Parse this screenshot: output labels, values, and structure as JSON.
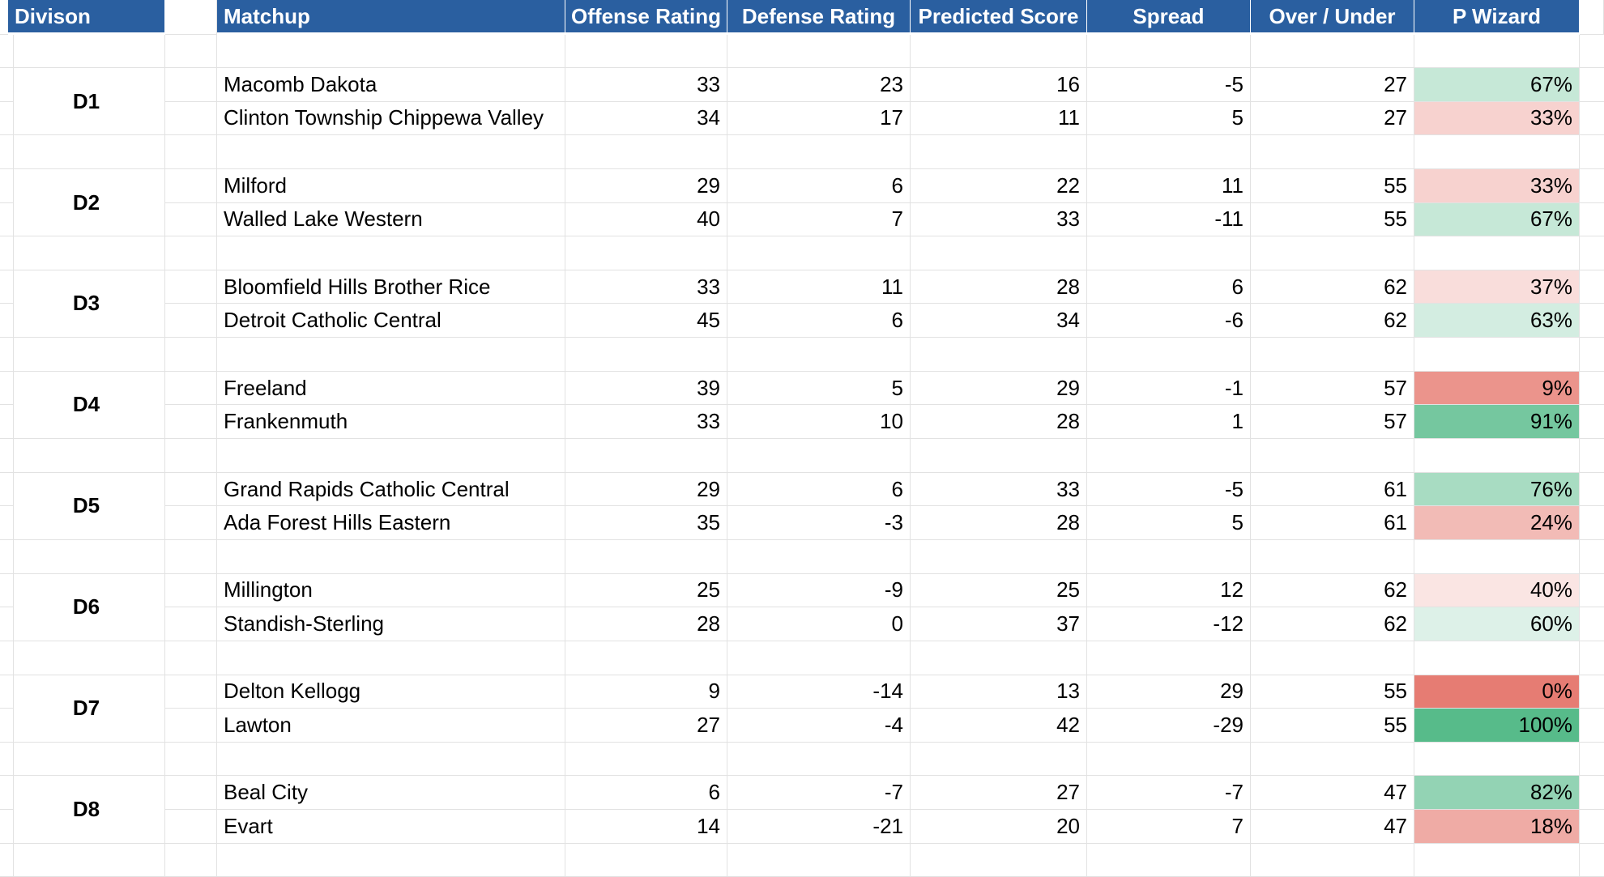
{
  "headers": {
    "division": "Divison",
    "matchup": "Matchup",
    "offense": "Offense Rating",
    "defense": "Defense Rating",
    "predicted": "Predicted Score",
    "spread": "Spread",
    "over_under": "Over / Under",
    "p_wizard": "P Wizard"
  },
  "divisions": [
    {
      "label": "D1",
      "teams": [
        {
          "name": "Macomb Dakota",
          "offense": "33",
          "defense": "23",
          "predicted": "16",
          "spread": "-5",
          "over_under": "27",
          "p_wizard": "67%",
          "p": 0.67
        },
        {
          "name": "Clinton Township Chippewa Valley",
          "offense": "34",
          "defense": "17",
          "predicted": "11",
          "spread": "5",
          "over_under": "27",
          "p_wizard": "33%",
          "p": 0.33
        }
      ]
    },
    {
      "label": "D2",
      "teams": [
        {
          "name": "Milford",
          "offense": "29",
          "defense": "6",
          "predicted": "22",
          "spread": "11",
          "over_under": "55",
          "p_wizard": "33%",
          "p": 0.33
        },
        {
          "name": "Walled Lake Western",
          "offense": "40",
          "defense": "7",
          "predicted": "33",
          "spread": "-11",
          "over_under": "55",
          "p_wizard": "67%",
          "p": 0.67
        }
      ]
    },
    {
      "label": "D3",
      "teams": [
        {
          "name": "Bloomfield Hills Brother Rice",
          "offense": "33",
          "defense": "11",
          "predicted": "28",
          "spread": "6",
          "over_under": "62",
          "p_wizard": "37%",
          "p": 0.37
        },
        {
          "name": "Detroit Catholic Central",
          "offense": "45",
          "defense": "6",
          "predicted": "34",
          "spread": "-6",
          "over_under": "62",
          "p_wizard": "63%",
          "p": 0.63
        }
      ]
    },
    {
      "label": "D4",
      "teams": [
        {
          "name": "Freeland",
          "offense": "39",
          "defense": "5",
          "predicted": "29",
          "spread": "-1",
          "over_under": "57",
          "p_wizard": "9%",
          "p": 0.09
        },
        {
          "name": "Frankenmuth",
          "offense": "33",
          "defense": "10",
          "predicted": "28",
          "spread": "1",
          "over_under": "57",
          "p_wizard": "91%",
          "p": 0.91
        }
      ]
    },
    {
      "label": "D5",
      "teams": [
        {
          "name": "Grand Rapids Catholic Central",
          "offense": "29",
          "defense": "6",
          "predicted": "33",
          "spread": "-5",
          "over_under": "61",
          "p_wizard": "76%",
          "p": 0.76
        },
        {
          "name": "Ada Forest Hills Eastern",
          "offense": "35",
          "defense": "-3",
          "predicted": "28",
          "spread": "5",
          "over_under": "61",
          "p_wizard": "24%",
          "p": 0.24
        }
      ]
    },
    {
      "label": "D6",
      "teams": [
        {
          "name": "Millington",
          "offense": "25",
          "defense": "-9",
          "predicted": "25",
          "spread": "12",
          "over_under": "62",
          "p_wizard": "40%",
          "p": 0.4
        },
        {
          "name": "Standish-Sterling",
          "offense": "28",
          "defense": "0",
          "predicted": "37",
          "spread": "-12",
          "over_under": "62",
          "p_wizard": "60%",
          "p": 0.6
        }
      ]
    },
    {
      "label": "D7",
      "teams": [
        {
          "name": "Delton Kellogg",
          "offense": "9",
          "defense": "-14",
          "predicted": "13",
          "spread": "29",
          "over_under": "55",
          "p_wizard": "0%",
          "p": 0.0
        },
        {
          "name": "Lawton",
          "offense": "27",
          "defense": "-4",
          "predicted": "42",
          "spread": "-29",
          "over_under": "55",
          "p_wizard": "100%",
          "p": 1.0
        }
      ]
    },
    {
      "label": "D8",
      "teams": [
        {
          "name": "Beal City",
          "offense": "6",
          "defense": "-7",
          "predicted": "27",
          "spread": "-7",
          "over_under": "47",
          "p_wizard": "82%",
          "p": 0.82
        },
        {
          "name": "Evart",
          "offense": "14",
          "defense": "-21",
          "predicted": "20",
          "spread": "7",
          "over_under": "47",
          "p_wizard": "18%",
          "p": 0.18
        }
      ]
    }
  ],
  "colors": {
    "header_bg": "#2a5fa0",
    "low": "#e67c73",
    "mid": "#ffffff",
    "high": "#57bb8a"
  }
}
